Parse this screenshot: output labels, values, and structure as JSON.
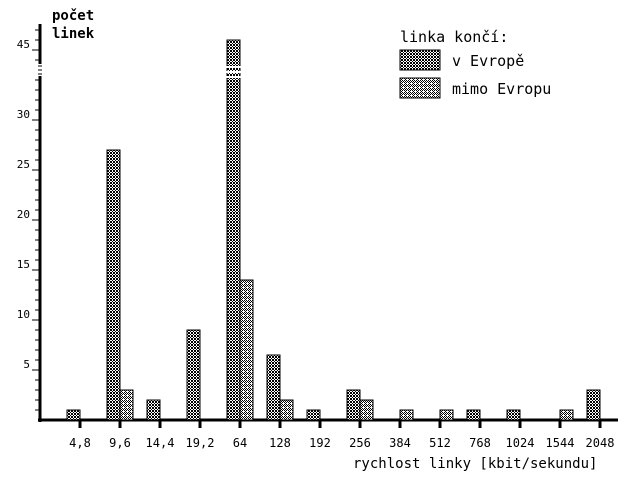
{
  "chart_data": {
    "type": "bar",
    "title": "",
    "ylabel": "počet linek",
    "ylabel_lines": [
      "počet",
      "linek"
    ],
    "xlabel": "rychlost linky [kbit/sekundu]",
    "categories": [
      "4,8",
      "9,6",
      "14,4",
      "19,2",
      "64",
      "128",
      "192",
      "256",
      "384",
      "512",
      "768",
      "1024",
      "1544",
      "2048"
    ],
    "series": [
      {
        "name": "v Evropě",
        "values": [
          1,
          27,
          2,
          9,
          46,
          6.5,
          1,
          3,
          0,
          0,
          1,
          1,
          0,
          3
        ]
      },
      {
        "name": "mimo Evropu",
        "values": [
          0,
          3,
          0,
          0,
          14,
          2,
          0,
          2,
          1,
          1,
          0,
          0,
          1,
          0
        ]
      }
    ],
    "yticks": [
      5,
      10,
      15,
      20,
      25,
      30,
      45
    ],
    "ylim": [
      0,
      47
    ],
    "axis_break": [
      34,
      44
    ],
    "legend_title": "linka končí:",
    "legend_position": "top-right",
    "grid": false
  }
}
